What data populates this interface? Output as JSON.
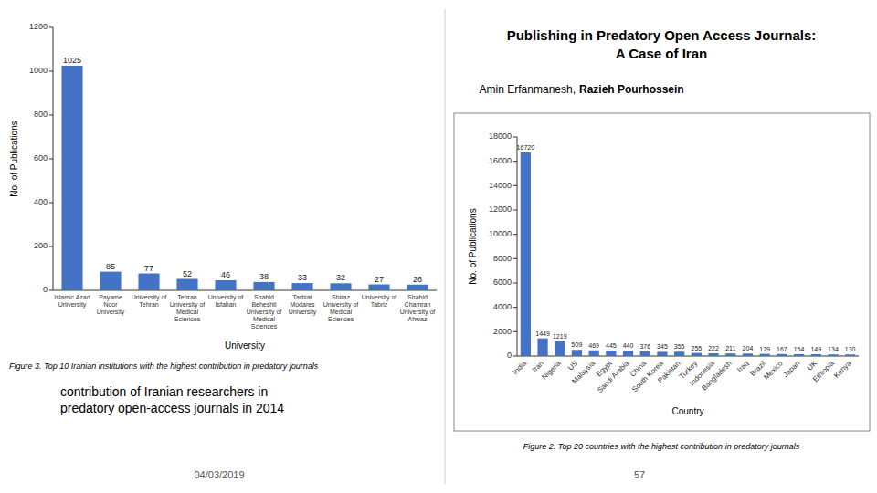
{
  "chart_data": [
    {
      "type": "bar",
      "title": "Figure 3. Top 10 Iranian institutions with the highest contribution in predatory journals",
      "xlabel": "University",
      "ylabel": "No. of Publications",
      "categories": [
        "Islamic Azad\nUniversity",
        "Payame\nNoor\nUniversity",
        "University of\nTehran",
        "Tehran\nUniversity of\nMedical\nSciences",
        "University of\nIsfahan",
        "Shahid\nBeheshti\nUniversity of\nMedical\nSciences",
        "Tarbiat\nModares\nUniversity",
        "Shiraz\nUniversity of\nMedical\nSciences",
        "University of\nTabriz",
        "Shahid\nChamran\nUniversity of\nAhwaz"
      ],
      "values": [
        1025,
        85,
        77,
        52,
        46,
        38,
        33,
        32,
        27,
        26
      ],
      "color": "#4472C4",
      "ylim": [
        0,
        1200
      ],
      "yticks": [
        0,
        200,
        400,
        600,
        800,
        1000,
        1200
      ],
      "grid": false,
      "data_labels": true,
      "annotations": [
        "contribution of Iranian researchers in\npredatory open-access journals in 2014",
        "04/03/2019"
      ]
    },
    {
      "type": "bar",
      "title": "Figure 2. Top 20 countries with the highest contribution in predatory journals",
      "xlabel": "Country",
      "ylabel": "No. of Publications",
      "categories": [
        "India",
        "Iran",
        "Nigeria",
        "US",
        "Malaysia",
        "Egypt",
        "Saudi Arabia",
        "China",
        "South Korea",
        "Pakistan",
        "Turkey",
        "Indonesia",
        "Bangladesh",
        "Iraq",
        "Brazil",
        "Mexico",
        "Japan",
        "UK",
        "Ethiopia",
        "Kenya"
      ],
      "values": [
        16720,
        1449,
        1219,
        509,
        469,
        445,
        440,
        376,
        345,
        355,
        255,
        222,
        211,
        204,
        179,
        167,
        154,
        149,
        134,
        130
      ],
      "color": "#4472C4",
      "ylim": [
        0,
        18000
      ],
      "yticks": [
        0,
        2000,
        4000,
        6000,
        8000,
        10000,
        12000,
        14000,
        16000,
        18000
      ],
      "grid": false,
      "data_labels": true,
      "annotations": [
        "Publishing in Predatory Open Access Journals:",
        "A Case of Iran",
        "Amin Erfanmanesh,",
        "Razieh Pourhossein",
        "57"
      ]
    }
  ]
}
